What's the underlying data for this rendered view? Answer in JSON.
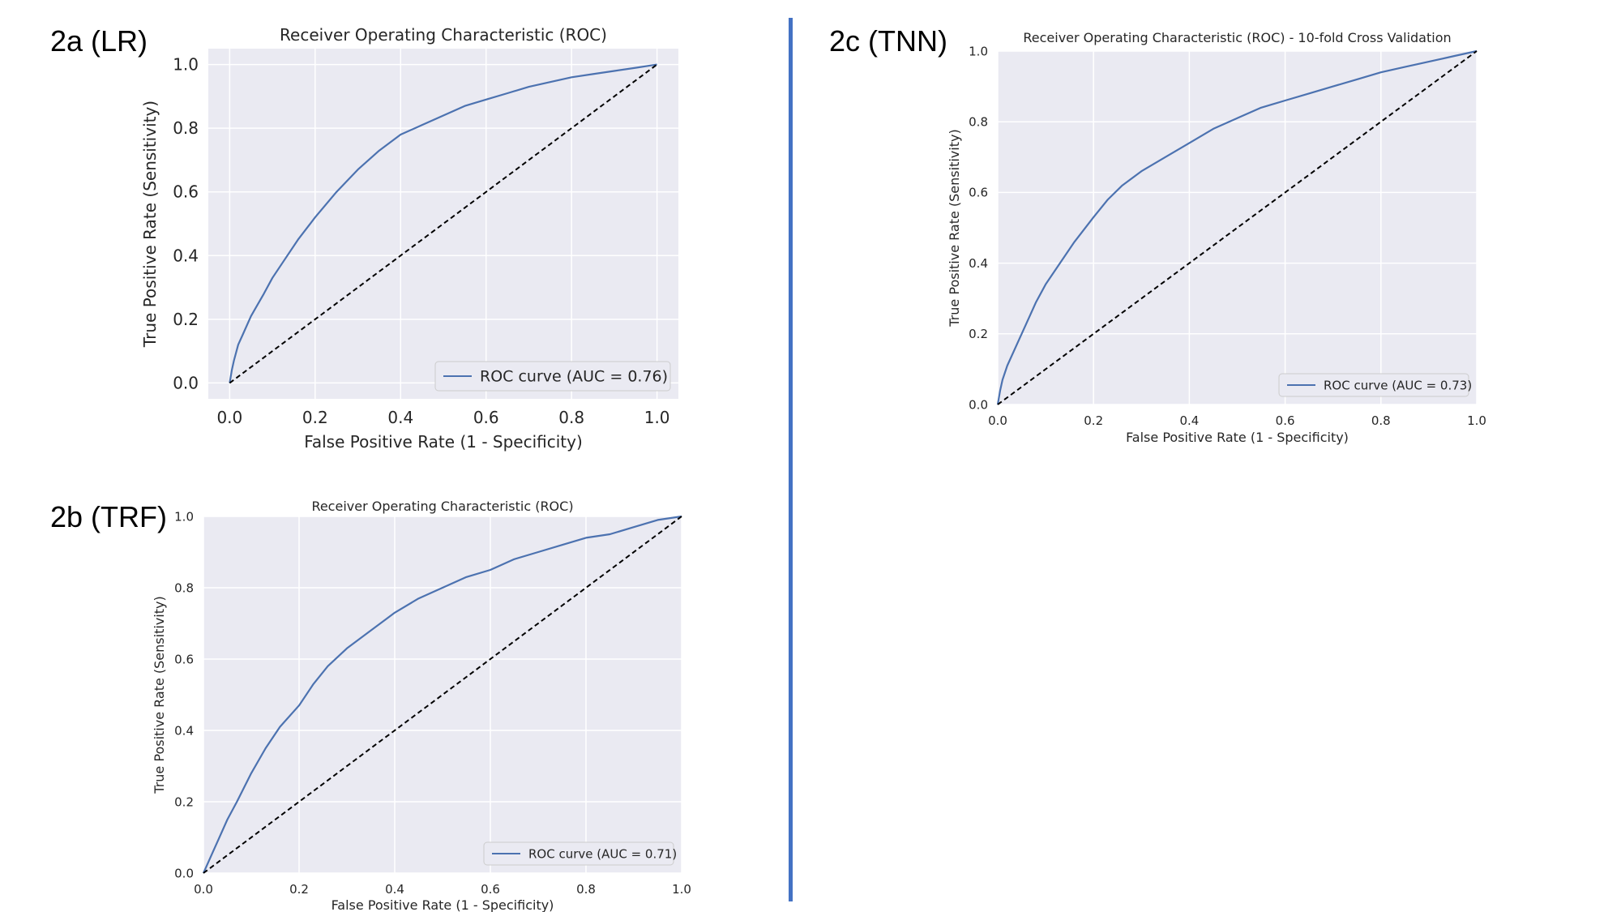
{
  "panels": [
    {
      "label": "2a (LR)"
    },
    {
      "label": "2b (TRF)"
    },
    {
      "label": "2c (TNN)"
    }
  ],
  "colors": {
    "curve": "#4c72b0",
    "plot_bg": "#eaeaf2",
    "grid": "#ffffff",
    "diagonal": "#000000",
    "divider": "#4472c4"
  },
  "chart_data": [
    {
      "type": "line",
      "title": "Receiver Operating Characteristic (ROC)",
      "xlabel": "False Positive Rate (1 - Specificity)",
      "ylabel": "True Positive Rate (Sensitivity)",
      "xlim": [
        -0.05,
        1.05
      ],
      "ylim": [
        -0.05,
        1.05
      ],
      "xticks": [
        "0.0",
        "0.2",
        "0.4",
        "0.6",
        "0.8",
        "1.0"
      ],
      "yticks": [
        "0.0",
        "0.2",
        "0.4",
        "0.6",
        "0.8",
        "1.0"
      ],
      "grid": true,
      "legend": "lower-right",
      "series": [
        {
          "name": "ROC curve (AUC = 0.76)",
          "x": [
            0,
            0.005,
            0.01,
            0.02,
            0.03,
            0.05,
            0.08,
            0.1,
            0.13,
            0.16,
            0.2,
            0.25,
            0.3,
            0.35,
            0.4,
            0.45,
            0.5,
            0.55,
            0.6,
            0.65,
            0.7,
            0.75,
            0.8,
            0.85,
            0.9,
            0.95,
            1.0
          ],
          "y": [
            0,
            0.04,
            0.07,
            0.12,
            0.15,
            0.21,
            0.28,
            0.33,
            0.39,
            0.45,
            0.52,
            0.6,
            0.67,
            0.73,
            0.78,
            0.81,
            0.84,
            0.87,
            0.89,
            0.91,
            0.93,
            0.945,
            0.96,
            0.97,
            0.98,
            0.99,
            1.0
          ]
        },
        {
          "x": [
            0,
            1
          ],
          "y": [
            0,
            1
          ],
          "style": "dashed"
        }
      ]
    },
    {
      "type": "line",
      "title": "Receiver Operating Characteristic (ROC)",
      "xlabel": "False Positive Rate (1 - Specificity)",
      "ylabel": "True Positive Rate (Sensitivity)",
      "xlim": [
        0,
        1.0
      ],
      "ylim": [
        0,
        1.0
      ],
      "xticks": [
        "0.0",
        "0.2",
        "0.4",
        "0.6",
        "0.8",
        "1.0"
      ],
      "yticks": [
        "0.0",
        "0.2",
        "0.4",
        "0.6",
        "0.8",
        "1.0"
      ],
      "grid": true,
      "legend": "lower-right",
      "series": [
        {
          "name": "ROC curve (AUC = 0.71)",
          "x": [
            0,
            0.01,
            0.02,
            0.03,
            0.05,
            0.07,
            0.1,
            0.13,
            0.16,
            0.2,
            0.23,
            0.26,
            0.3,
            0.35,
            0.4,
            0.45,
            0.5,
            0.55,
            0.6,
            0.65,
            0.7,
            0.75,
            0.8,
            0.85,
            0.9,
            0.95,
            1.0
          ],
          "y": [
            0,
            0.03,
            0.06,
            0.09,
            0.15,
            0.2,
            0.28,
            0.35,
            0.41,
            0.47,
            0.53,
            0.58,
            0.63,
            0.68,
            0.73,
            0.77,
            0.8,
            0.83,
            0.85,
            0.88,
            0.9,
            0.92,
            0.94,
            0.95,
            0.97,
            0.99,
            1.0
          ]
        },
        {
          "x": [
            0,
            1
          ],
          "y": [
            0,
            1
          ],
          "style": "dashed"
        }
      ]
    },
    {
      "type": "line",
      "title": "Receiver Operating Characteristic (ROC) - 10-fold Cross Validation",
      "xlabel": "False Positive Rate (1 - Specificity)",
      "ylabel": "True Positive Rate (Sensitivity)",
      "xlim": [
        0,
        1.0
      ],
      "ylim": [
        0,
        1.0
      ],
      "xticks": [
        "0.0",
        "0.2",
        "0.4",
        "0.6",
        "0.8",
        "1.0"
      ],
      "yticks": [
        "0.0",
        "0.2",
        "0.4",
        "0.6",
        "0.8",
        "1.0"
      ],
      "grid": true,
      "legend": "lower-right",
      "series": [
        {
          "name": "ROC curve (AUC = 0.73)",
          "x": [
            0,
            0.005,
            0.01,
            0.02,
            0.04,
            0.06,
            0.08,
            0.1,
            0.13,
            0.16,
            0.2,
            0.23,
            0.26,
            0.3,
            0.35,
            0.4,
            0.45,
            0.5,
            0.55,
            0.6,
            0.65,
            0.7,
            0.75,
            0.8,
            0.85,
            0.9,
            0.95,
            1.0
          ],
          "y": [
            0,
            0.04,
            0.07,
            0.11,
            0.17,
            0.23,
            0.29,
            0.34,
            0.4,
            0.46,
            0.53,
            0.58,
            0.62,
            0.66,
            0.7,
            0.74,
            0.78,
            0.81,
            0.84,
            0.86,
            0.88,
            0.9,
            0.92,
            0.94,
            0.955,
            0.97,
            0.985,
            1.0
          ]
        },
        {
          "x": [
            0,
            1
          ],
          "y": [
            0,
            1
          ],
          "style": "dashed"
        }
      ]
    }
  ]
}
